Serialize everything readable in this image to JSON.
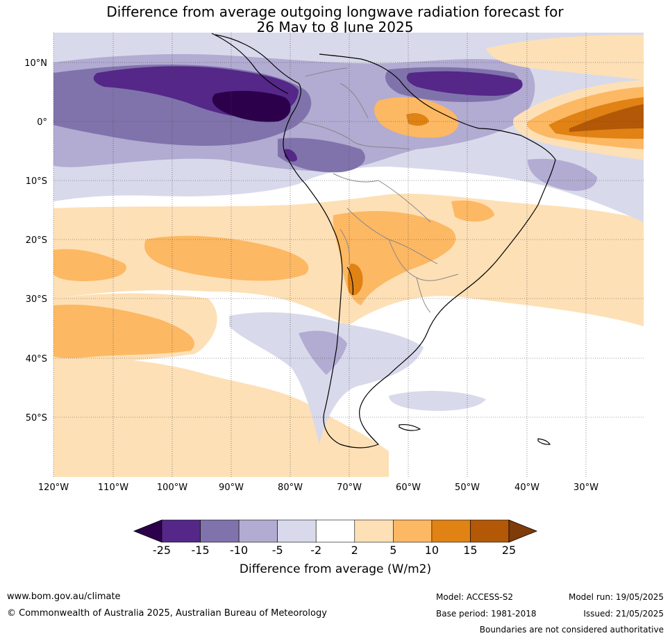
{
  "title": {
    "line1": "Difference from average outgoing longwave radiation forecast for",
    "line2": "26 May to 8 June 2025"
  },
  "lat_labels": [
    "10°N",
    "0°",
    "10°S",
    "20°S",
    "30°S",
    "40°S",
    "50°S"
  ],
  "lon_labels": [
    "120°W",
    "110°W",
    "100°W",
    "90°W",
    "80°W",
    "70°W",
    "60°W",
    "50°W",
    "40°W",
    "30°W"
  ],
  "colorbar": {
    "ticks": [
      "-25",
      "-15",
      "-10",
      "-5",
      "-2",
      "2",
      "5",
      "10",
      "15",
      "25"
    ],
    "colors": [
      "#2d004b",
      "#542788",
      "#8073ac",
      "#b2abd2",
      "#d8daeb",
      "#ffffff",
      "#fee0b6",
      "#fdb863",
      "#e08214",
      "#b35806",
      "#7f3b08"
    ],
    "label": "Difference from average (W/m2)"
  },
  "footer": {
    "url": "www.bom.gov.au/climate",
    "copyright": "© Commonwealth of Australia 2025, Australian Bureau of Meteorology",
    "model": "Model: ACCESS-S2",
    "base_period": "Base period: 1981-2018",
    "model_run": "Model run: 19/05/2025",
    "issued": "Issued: 21/05/2025",
    "disclaimer": "Boundaries are not considered authoritative"
  }
}
